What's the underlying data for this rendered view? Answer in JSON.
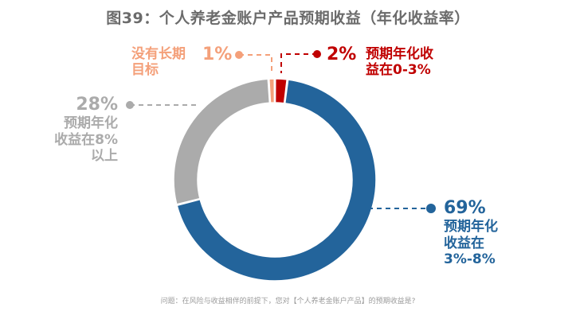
{
  "title": {
    "prefix": "图",
    "number": "39",
    "text": "：个人养老金账户产品预期收益（年化收益率）"
  },
  "labels": {
    "orange": {
      "pct": "1%",
      "line1": "没有长期",
      "line2": "目标"
    },
    "red": {
      "pct": "2%",
      "line1": "预期年化收",
      "line2": "益在0-3%"
    },
    "gray": {
      "pct": "28%",
      "line1": "预期年化",
      "line2": "收益在8%",
      "line3": "以上"
    },
    "blue": {
      "pct": "69%",
      "line1": "预期年化",
      "line2": "收益在",
      "line3": "3%-8%"
    }
  },
  "footer": "问题：在风险与收益相伴的前提下，您对【个人养老金账户产品】的预期收益是?",
  "colors": {
    "blue": "#23649b",
    "gray": "#ababab",
    "red": "#c00000",
    "orange": "#f4a07a",
    "title": "#6b6b6b"
  },
  "chart_data": {
    "type": "pie",
    "title": "图39：个人养老金账户产品预期收益（年化收益率）",
    "donut": true,
    "categories": [
      "预期年化收益在0-3%",
      "预期年化收益在3%-8%",
      "预期年化收益在8%以上",
      "没有长期目标"
    ],
    "values": [
      2,
      69,
      28,
      1
    ],
    "unit": "%",
    "colors": [
      "#c00000",
      "#23649b",
      "#ababab",
      "#f4a07a"
    ],
    "start_angle": "12 o'clock, clockwise",
    "annotation": "问题：在风险与收益相伴的前提下，您对【个人养老金账户产品】的预期收益是?"
  }
}
